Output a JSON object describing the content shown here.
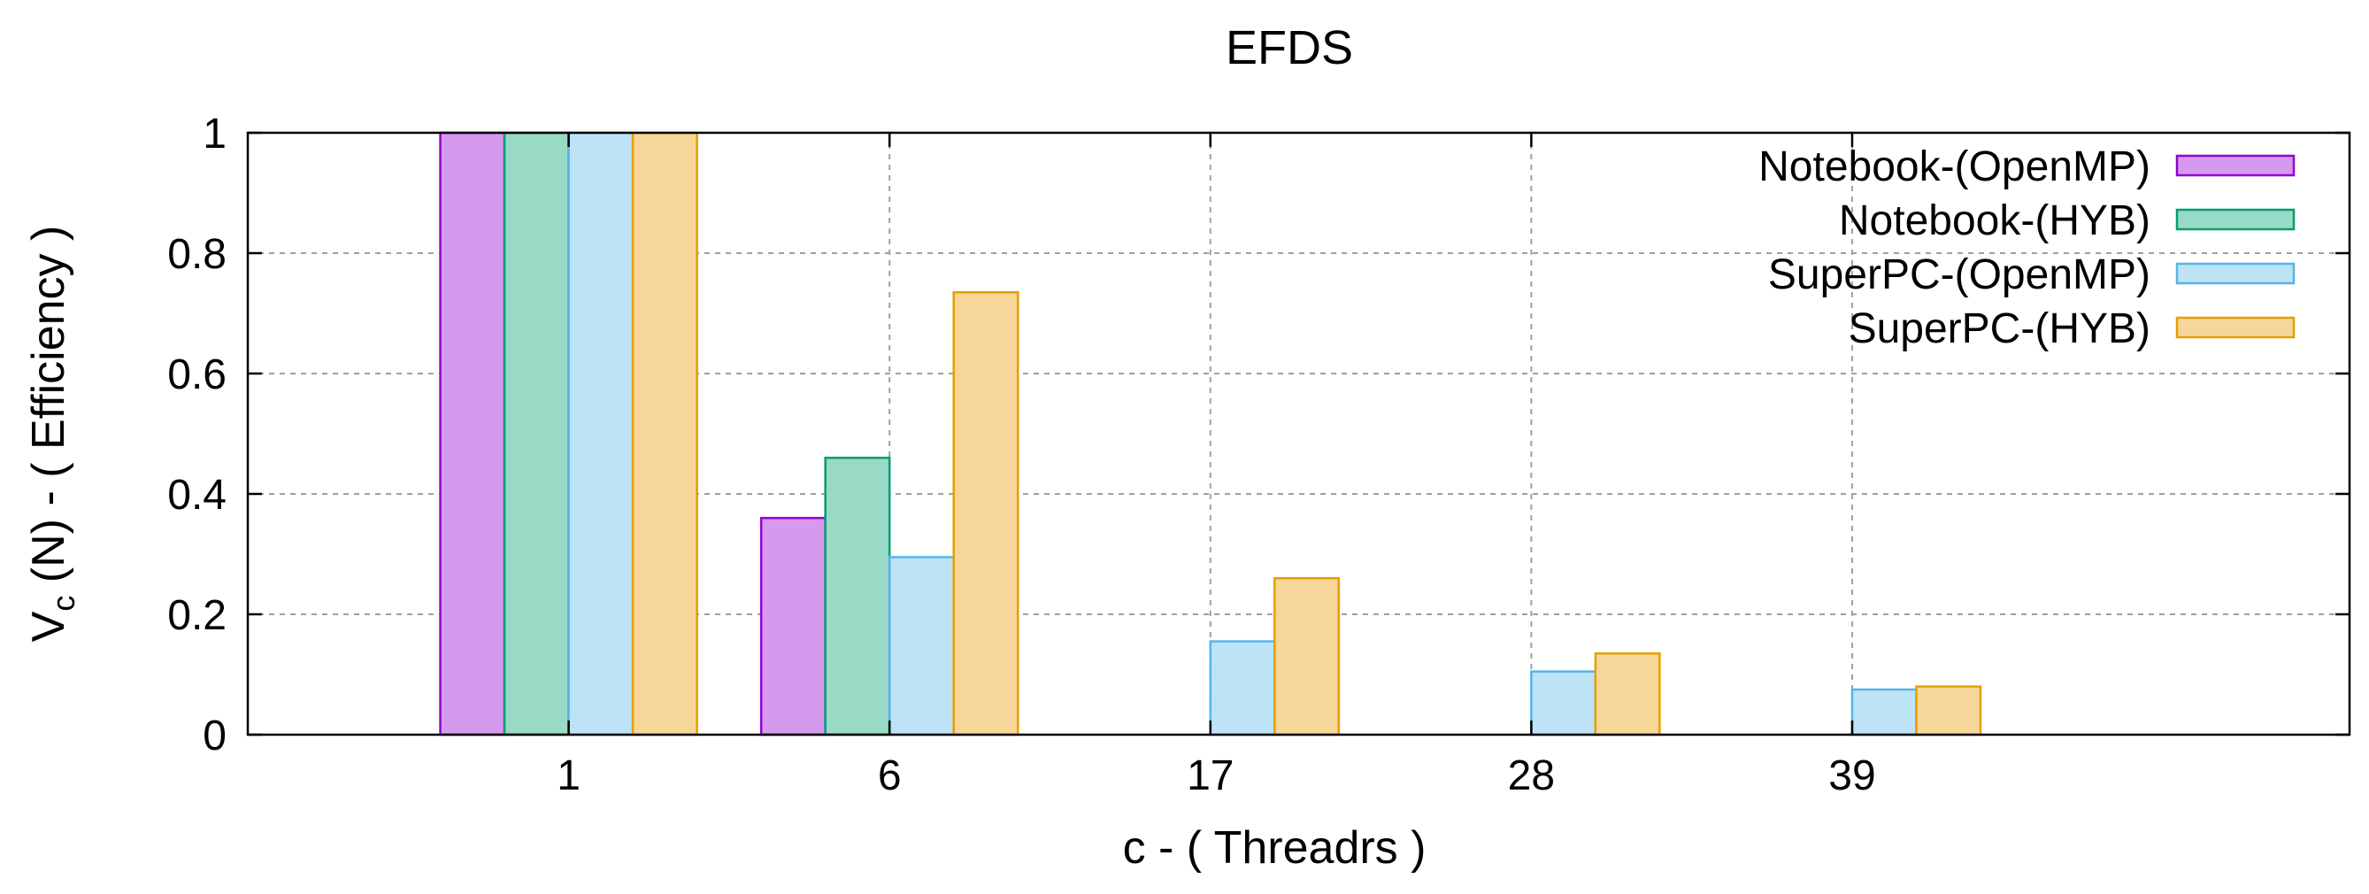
{
  "chart_data": {
    "type": "bar",
    "title": "EFDS",
    "xlabel": "c - ( Threadrs )",
    "ylabel": {
      "main": "V",
      "subscript": "c",
      "rest": " (N) - ( Efficiency )"
    },
    "categories": [
      "1",
      "6",
      "17",
      "28",
      "39"
    ],
    "ylim": [
      0,
      1
    ],
    "yticks": [
      "0",
      "0.2",
      "0.4",
      "0.6",
      "0.8",
      "1"
    ],
    "grid": true,
    "legend_position": "top-right",
    "series": [
      {
        "name": "Notebook-(OpenMP)",
        "values": [
          1.0,
          0.36,
          null,
          null,
          null
        ],
        "fill": "#d59aed",
        "stroke": "#9400d3"
      },
      {
        "name": "Notebook-(HYB)",
        "values": [
          1.0,
          0.46,
          null,
          null,
          null
        ],
        "fill": "#99dac7",
        "stroke": "#009e73"
      },
      {
        "name": "SuperPC-(OpenMP)",
        "values": [
          1.0,
          0.295,
          0.155,
          0.105,
          0.075
        ],
        "fill": "#bde3f6",
        "stroke": "#56b4e9"
      },
      {
        "name": "SuperPC-(HYB)",
        "values": [
          1.0,
          0.735,
          0.26,
          0.135,
          0.08
        ],
        "fill": "#f6d699",
        "stroke": "#e69f00"
      }
    ]
  }
}
